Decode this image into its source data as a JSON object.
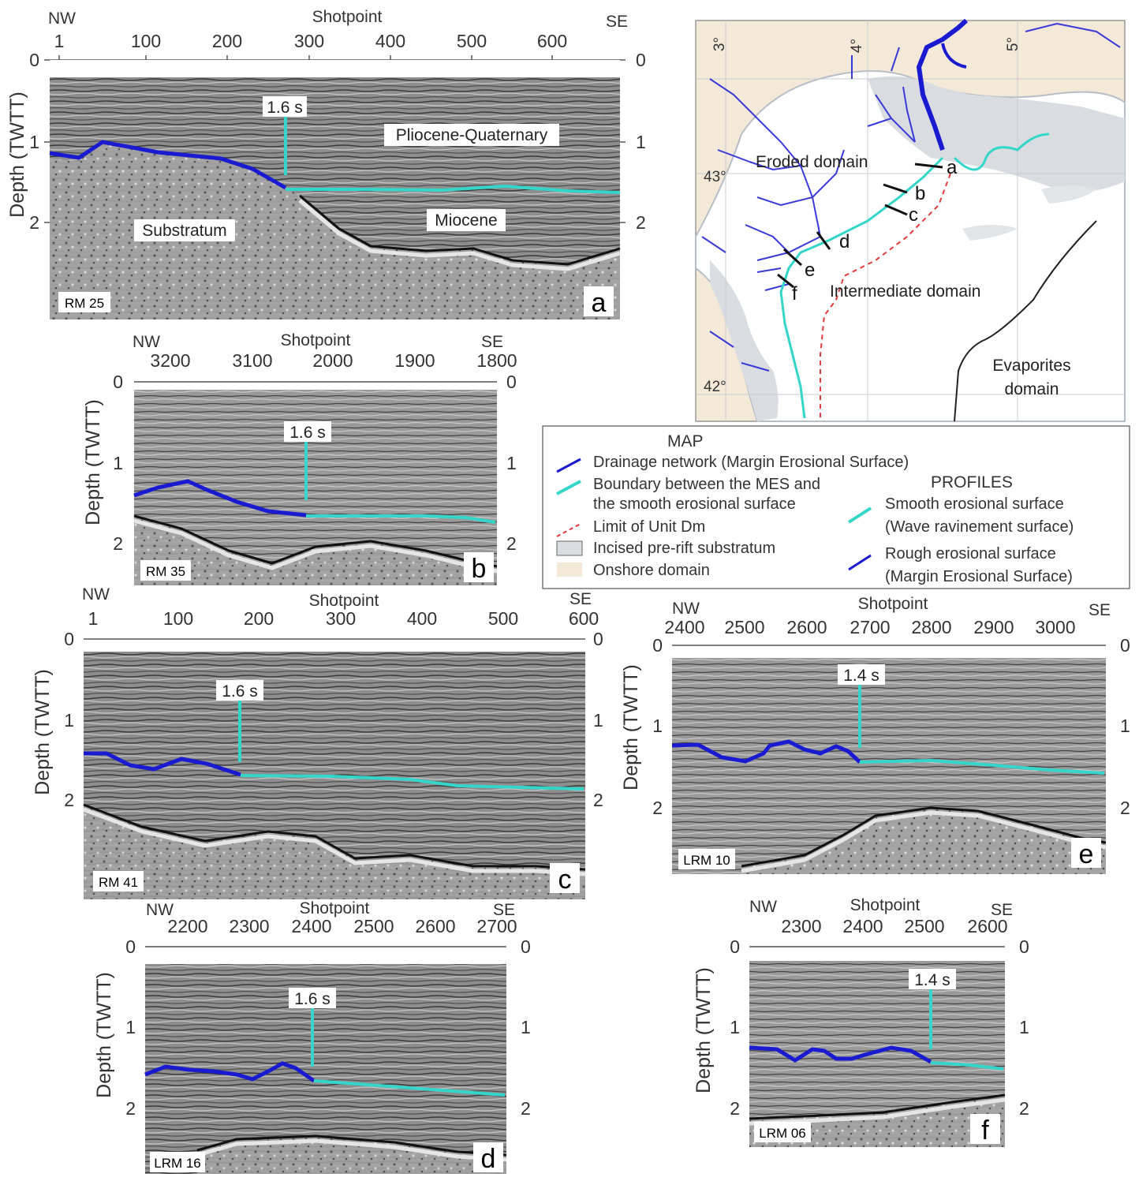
{
  "panels": [
    {
      "id": "a",
      "orient_left": "NW",
      "orient_right": "SE",
      "shot_title": "Shotpoint",
      "ticks": [
        "1",
        "100",
        "200",
        "300",
        "400",
        "500",
        "600"
      ],
      "depth_ticks": [
        "0",
        "1",
        "2"
      ],
      "depth_label": "Depth (TWTT)",
      "marker": "1.6 s",
      "line_name": "RM 25",
      "panel_letter": "a",
      "annotations": {
        "pliocene": "Pliocene-Quaternary",
        "miocene": "Miocene",
        "substratum": "Substratum"
      }
    },
    {
      "id": "b",
      "orient_left": "NW",
      "orient_right": "SE",
      "shot_title": "Shotpoint",
      "ticks": [
        "3200",
        "3100",
        "2000",
        "1900",
        "1800"
      ],
      "depth_ticks": [
        "0",
        "1",
        "2"
      ],
      "depth_label": "Depth (TWTT)",
      "marker": "1.6 s",
      "line_name": "RM 35",
      "panel_letter": "b"
    },
    {
      "id": "c",
      "orient_left": "NW",
      "orient_right": "SE",
      "shot_title": "Shotpoint",
      "ticks": [
        "1",
        "100",
        "200",
        "300",
        "400",
        "500",
        "600"
      ],
      "depth_ticks": [
        "0",
        "1",
        "2"
      ],
      "depth_label": "Depth (TWTT)",
      "marker": "1.6 s",
      "line_name": "RM 41",
      "panel_letter": "c"
    },
    {
      "id": "e",
      "orient_left": "NW",
      "orient_right": "SE",
      "shot_title": "Shotpoint",
      "ticks": [
        "2400",
        "2500",
        "2600",
        "2700",
        "2800",
        "2900",
        "3000"
      ],
      "depth_ticks": [
        "0",
        "1",
        "2"
      ],
      "depth_label": "Depth (TWTT)",
      "marker": "1.4 s",
      "line_name": "LRM 10",
      "panel_letter": "e"
    },
    {
      "id": "d",
      "orient_left": "NW",
      "orient_right": "SE",
      "shot_title": "Shotpoint",
      "ticks": [
        "2200",
        "2300",
        "2400",
        "2500",
        "2600",
        "2700"
      ],
      "depth_ticks": [
        "0",
        "1",
        "2"
      ],
      "depth_label": "Depth (TWTT)",
      "marker": "1.6 s",
      "line_name": "LRM 16",
      "panel_letter": "d"
    },
    {
      "id": "f",
      "orient_left": "NW",
      "orient_right": "SE",
      "shot_title": "Shotpoint",
      "ticks": [
        "2300",
        "2400",
        "2500",
        "2600"
      ],
      "depth_ticks": [
        "0",
        "1",
        "2"
      ],
      "depth_label": "Depth (TWTT)",
      "marker": "1.4 s",
      "line_name": "LRM 06",
      "panel_letter": "f"
    }
  ],
  "map": {
    "longitudes": [
      "3°",
      "4°",
      "5°"
    ],
    "latitudes": [
      "43°",
      "42°"
    ],
    "domains": {
      "eroded": "Eroded domain",
      "intermediate": "Intermediate domain",
      "evaporites_1": "Evaporites",
      "evaporites_2": "domain"
    },
    "profile_labels": [
      "a",
      "b",
      "c",
      "d",
      "e",
      "f"
    ]
  },
  "legend": {
    "map_title": "MAP",
    "profiles_title": "PROFILES",
    "items": {
      "drainage": "Drainage network (Margin Erosional Surface)",
      "boundary_1": "Boundary between the MES and",
      "boundary_2": "the smooth erosional surface",
      "limit": "Limit of Unit Dm",
      "incised": "Incised pre-rift substratum",
      "onshore": "Onshore domain",
      "smooth_1": "Smooth erosional surface",
      "smooth_2": "(Wave ravinement surface)",
      "rough_1": "Rough erosional surface",
      "rough_2": "(Margin Erosional Surface)"
    }
  },
  "colors": {
    "mes": "#1a1ad0",
    "smooth": "#33d6c8",
    "limit": "#e03a3a",
    "onshore": "#f4e8d8",
    "incised": "#d9dde2"
  }
}
